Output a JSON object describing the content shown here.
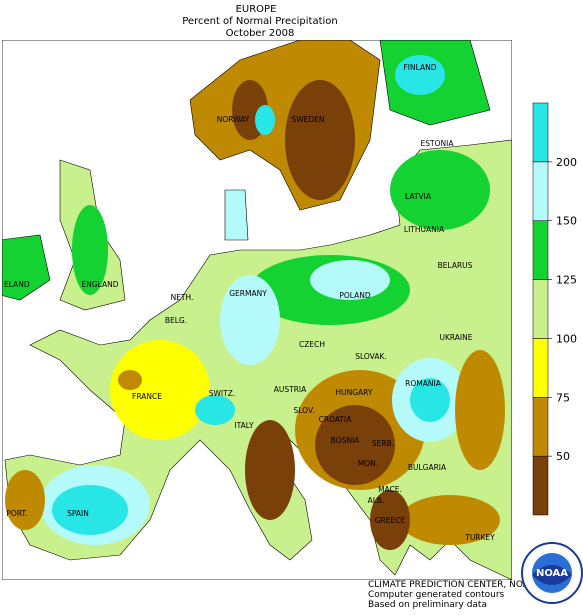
{
  "header": {
    "title": "EUROPE",
    "subtitle": "Percent of Normal Precipitation",
    "date": "October 2008"
  },
  "legend": {
    "colors": [
      "#7a400a",
      "#c08a00",
      "#ffff00",
      "#c8f08c",
      "#14d232",
      "#b4fafa",
      "#28e6e6"
    ],
    "ticks": [
      50,
      75,
      100,
      125,
      150,
      200
    ]
  },
  "labels": [
    "NORWAY",
    "SWEDEN",
    "FINLAND",
    "ESTONIA",
    "LATVIA",
    "LITHUANIA",
    "BELARUS",
    "ELAND",
    "ENGLAND",
    "NETH.",
    "BELG.",
    "GERMANY",
    "POLAND",
    "CZECH",
    "SLOVAK.",
    "UKRAINE",
    "FRANCE",
    "SWITZ.",
    "AUSTRIA",
    "HUNGARY",
    "ROMANIA",
    "SLOV.",
    "CROATIA",
    "BOSNIA",
    "ITALY",
    "SERB.",
    "MON.",
    "BULGARIA",
    "MACE.",
    "ALB.",
    "GREECE",
    "TURKEY",
    "PORT.",
    "SPAIN"
  ],
  "footer": [
    "CLIMATE PREDICTION CENTER, NOAA",
    "Computer generated contours",
    "Based on preliminary data"
  ],
  "logo": "NOAA"
}
